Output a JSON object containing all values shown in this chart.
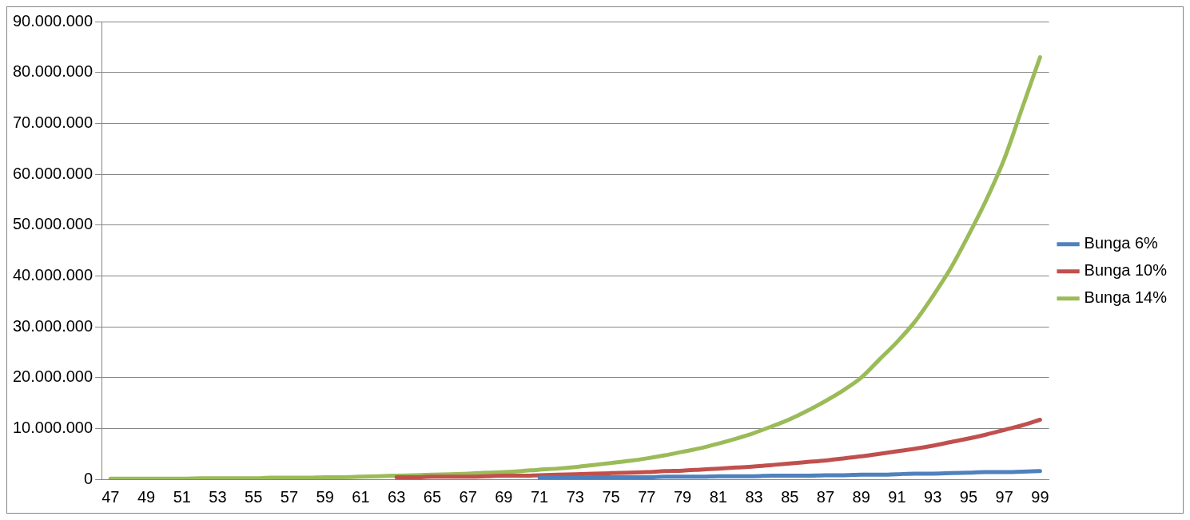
{
  "chart_data": {
    "type": "line",
    "categories": [
      "47",
      null,
      "49",
      null,
      "51",
      null,
      "53",
      null,
      "55",
      null,
      "57",
      null,
      "59",
      null,
      "61",
      null,
      "63",
      null,
      "65",
      null,
      "67",
      null,
      "69",
      null,
      "71",
      null,
      "73",
      null,
      "75",
      null,
      "77",
      null,
      "79",
      null,
      "81",
      null,
      "83",
      null,
      "85",
      null,
      "87",
      null,
      "89",
      null,
      "91",
      null,
      "93",
      null,
      "95",
      null,
      "97",
      null,
      "99"
    ],
    "series": [
      {
        "name": "Bunga 6%",
        "color": "#4f81bd",
        "values": [
          null,
          null,
          null,
          null,
          null,
          null,
          null,
          null,
          null,
          null,
          null,
          null,
          null,
          null,
          null,
          null,
          null,
          null,
          null,
          null,
          null,
          null,
          null,
          null,
          300000,
          300000,
          300000,
          400000,
          400000,
          400000,
          400000,
          500000,
          500000,
          500000,
          600000,
          600000,
          600000,
          700000,
          700000,
          700000,
          800000,
          800000,
          900000,
          900000,
          1000000,
          1100000,
          1100000,
          1200000,
          1300000,
          1400000,
          1400000,
          1500000,
          1600000
        ]
      },
      {
        "name": "Bunga 10%",
        "color": "#c0504d",
        "values": [
          null,
          null,
          null,
          null,
          null,
          null,
          null,
          null,
          null,
          null,
          null,
          null,
          null,
          null,
          null,
          null,
          400000,
          400000,
          500000,
          500000,
          500000,
          600000,
          700000,
          700000,
          800000,
          900000,
          1000000,
          1100000,
          1200000,
          1300000,
          1400000,
          1600000,
          1700000,
          1900000,
          2100000,
          2300000,
          2500000,
          2800000,
          3100000,
          3400000,
          3700000,
          4100000,
          4500000,
          5000000,
          5500000,
          6000000,
          6600000,
          7300000,
          8000000,
          8800000,
          9700000,
          10600000,
          11700000
        ]
      },
      {
        "name": "Bunga 14%",
        "color": "#9bbb59",
        "values": [
          100000,
          100000,
          100000,
          100000,
          100000,
          200000,
          200000,
          200000,
          200000,
          300000,
          300000,
          300000,
          400000,
          400000,
          500000,
          600000,
          700000,
          800000,
          900000,
          1000000,
          1100000,
          1300000,
          1400000,
          1600000,
          1900000,
          2100000,
          2400000,
          2800000,
          3200000,
          3600000,
          4100000,
          4700000,
          5400000,
          6100000,
          7000000,
          8000000,
          9100000,
          10400000,
          11800000,
          13500000,
          15400000,
          17500000,
          20000000,
          23500000,
          27000000,
          31000000,
          36000000,
          41500000,
          48000000,
          55000000,
          63000000,
          73000000,
          83000000
        ]
      }
    ],
    "ylim": [
      0,
      90000000
    ],
    "yticks": [
      0,
      {
        "value": 10000000,
        "label": "10.000.000"
      },
      {
        "value": 20000000,
        "label": "20.000.000"
      },
      {
        "value": 30000000,
        "label": "30.000.000"
      },
      {
        "value": 40000000,
        "label": "40.000.000"
      },
      {
        "value": 50000000,
        "label": "50.000.000"
      },
      {
        "value": 60000000,
        "label": "60.000.000"
      },
      {
        "value": 70000000,
        "label": "70.000.000"
      },
      {
        "value": 80000000,
        "label": "80.000.000"
      },
      {
        "value": 90000000,
        "label": "90.000.000"
      }
    ],
    "grid": "y",
    "legend": "right",
    "marker": "none",
    "line_style": "solid"
  }
}
